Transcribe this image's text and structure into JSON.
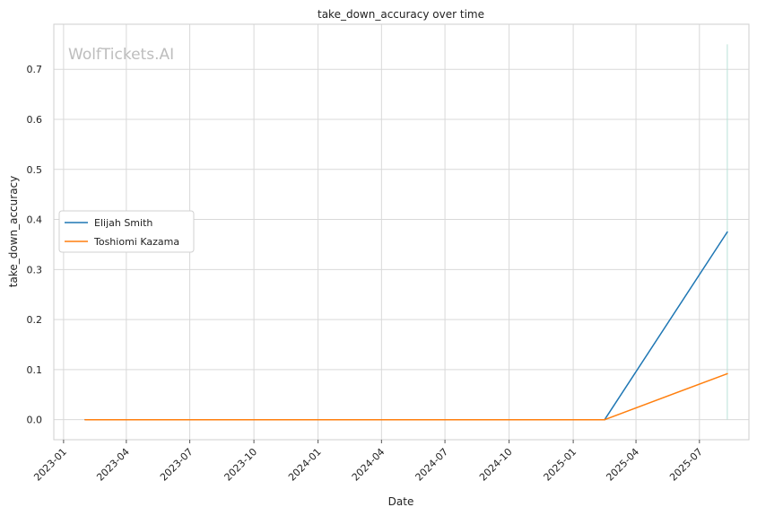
{
  "chart_data": {
    "type": "line",
    "title": "take_down_accuracy over time",
    "xlabel": "Date",
    "ylabel": "take_down_accuracy",
    "watermark": "WolfTickets.AI",
    "ylim": [
      -0.04,
      0.79
    ],
    "xlim": [
      "2022-12-18",
      "2025-09-10"
    ],
    "grid": true,
    "legend_position": "center-left",
    "x_ticks": [
      "2023-01",
      "2023-04",
      "2023-07",
      "2023-10",
      "2024-01",
      "2024-04",
      "2024-07",
      "2024-10",
      "2025-01",
      "2025-04",
      "2025-07"
    ],
    "y_ticks": [
      0.0,
      0.1,
      0.2,
      0.3,
      0.4,
      0.5,
      0.6,
      0.7
    ],
    "y_tick_labels": [
      "0.0",
      "0.1",
      "0.2",
      "0.3",
      "0.4",
      "0.5",
      "0.6",
      "0.7"
    ],
    "series": [
      {
        "name": "Elijah Smith",
        "color": "#1f77b4",
        "x": [
          "2023-02-01",
          "2025-02-15",
          "2025-08-10"
        ],
        "values": [
          0.0,
          0.0,
          0.375
        ]
      },
      {
        "name": "Toshiomi Kazama",
        "color": "#ff7f0e",
        "x": [
          "2023-02-01",
          "2025-02-15",
          "2025-08-10"
        ],
        "values": [
          0.0,
          0.0,
          0.092
        ]
      }
    ],
    "annotations": [
      {
        "type": "vertical-line",
        "x": "2025-08-10",
        "y_from": 0.0,
        "y_to": 0.75,
        "color": "#b9e2d8"
      }
    ]
  }
}
